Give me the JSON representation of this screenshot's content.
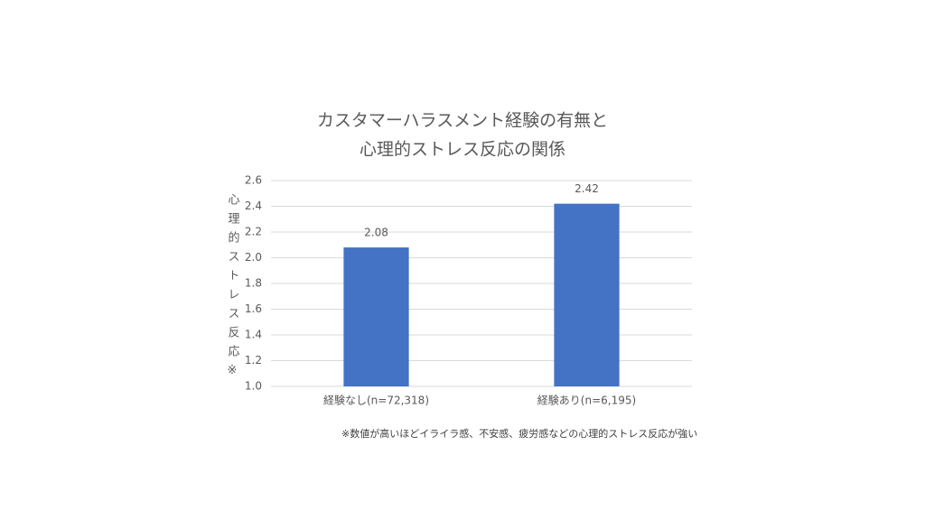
{
  "chart_data": {
    "type": "bar",
    "title": [
      "カスタマーハラスメント経験の有無と",
      "心理的ストレス反応の関係"
    ],
    "y_label": "心理的ストレス反応※",
    "categories": [
      "経験なし(n=72,318)",
      "経験あり(n=6,195)"
    ],
    "values": [
      2.08,
      2.42
    ],
    "color": "#4472c4",
    "ylim": [
      1.0,
      2.6
    ],
    "yticks": [
      {
        "value": 1,
        "label": "1.0"
      },
      1.2,
      1.4,
      1.6,
      1.8,
      {
        "value": 2,
        "label": "2.0"
      },
      2.2,
      2.4,
      2.6
    ],
    "grid": true,
    "footnote": "※数値が高いほどイライラ感、不安感、疲労感などの心理的ストレス反応が強い"
  }
}
